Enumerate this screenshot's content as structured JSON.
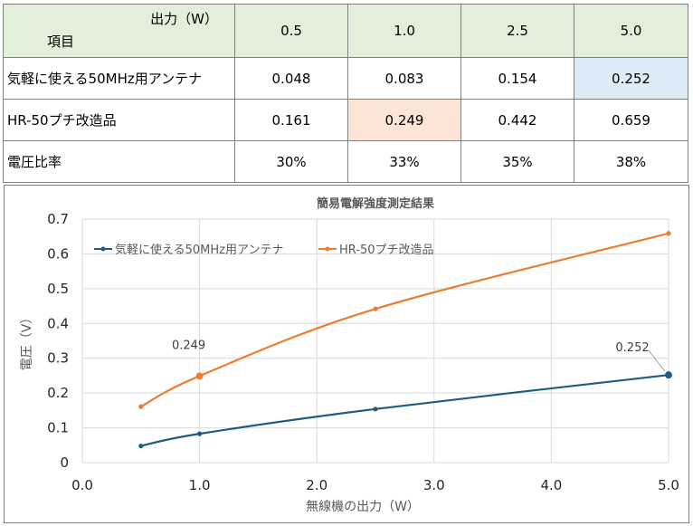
{
  "table": {
    "header": {
      "output_label": "出力（W）",
      "item_label": "項目",
      "columns": [
        "0.5",
        "1.0",
        "2.5",
        "5.0"
      ]
    },
    "rows": [
      {
        "label": "気軽に使える50MHz用アンテナ",
        "values": [
          "0.048",
          "0.083",
          "0.154",
          "0.252"
        ]
      },
      {
        "label": "HR-50プチ改造品",
        "values": [
          "0.161",
          "0.249",
          "0.442",
          "0.659"
        ]
      },
      {
        "label": "電圧比率",
        "values": [
          "30%",
          "33%",
          "35%",
          "38%"
        ]
      }
    ],
    "highlight_colors": {
      "blue": "#ddebf7",
      "pink": "#fce4d6",
      "header": "#e2efda"
    }
  },
  "chart_data": {
    "type": "line",
    "title": "簡易電解強度測定結果",
    "xlabel": "無線機の出力（W）",
    "ylabel": "電圧（V）",
    "xlim": [
      0.0,
      5.0
    ],
    "ylim": [
      0,
      0.7
    ],
    "x_ticks": [
      "0.0",
      "1.0",
      "2.0",
      "3.0",
      "4.0",
      "5.0"
    ],
    "y_ticks": [
      "0",
      "0.1",
      "0.2",
      "0.3",
      "0.4",
      "0.5",
      "0.6",
      "0.7"
    ],
    "grid": true,
    "legend_position": "top-left",
    "series": [
      {
        "name": "気軽に使える50MHz用アンテナ",
        "color": "#1f5c80",
        "x": [
          0.5,
          1.0,
          2.5,
          5.0
        ],
        "y": [
          0.048,
          0.083,
          0.154,
          0.252
        ]
      },
      {
        "name": "HR-50プチ改造品",
        "color": "#ed7d31",
        "x": [
          0.5,
          1.0,
          2.5,
          5.0
        ],
        "y": [
          0.161,
          0.249,
          0.442,
          0.659
        ]
      }
    ],
    "annotations": [
      {
        "text": "0.249",
        "series": 1,
        "x": 1.0,
        "y": 0.249
      },
      {
        "text": "0.252",
        "series": 0,
        "x": 5.0,
        "y": 0.252
      }
    ]
  }
}
